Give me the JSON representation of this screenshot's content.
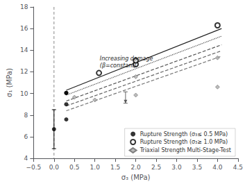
{
  "chart_data": {
    "type": "scatter",
    "xlabel": "σ₃ (MPa)",
    "ylabel": "σ₁ (MPa)",
    "xlim": [
      -0.5,
      4.5
    ],
    "ylim": [
      4.0,
      18.0
    ],
    "xticks": [
      {
        "value": -0.5,
        "label": "−0.5"
      },
      {
        "value": 0.0,
        "label": "0.0"
      },
      0.5,
      {
        "value": 1.0,
        "label": "1.0"
      },
      1.5,
      {
        "value": 2.0,
        "label": "2.0"
      },
      2.5,
      {
        "value": 3.0,
        "label": "3.0"
      },
      3.5,
      {
        "value": 4.0,
        "label": "4.0"
      },
      4.5
    ],
    "yticks": [
      4,
      6,
      8,
      10,
      12,
      14,
      16,
      18
    ],
    "grid": false,
    "legend": "lower right",
    "series": [
      {
        "type": "line",
        "line_style": "solid",
        "color": "#222222",
        "x": [
          0.3,
          4.1
        ],
        "values": [
          10.3,
          16.0
        ]
      },
      {
        "type": "line",
        "line_style": "dotted",
        "color": "#444444",
        "x": [
          0.3,
          4.1
        ],
        "values": [
          9.85,
          15.3
        ]
      },
      {
        "type": "line",
        "line_style": "dashed",
        "color": "#555555",
        "x": [
          0.3,
          4.1
        ],
        "values": [
          9.3,
          14.5
        ]
      },
      {
        "type": "line",
        "line_style": "dashed",
        "color": "#666666",
        "x": [
          0.3,
          4.1
        ],
        "values": [
          8.85,
          13.95
        ]
      },
      {
        "type": "line",
        "line_style": "dashed",
        "color": "#777777",
        "x": [
          0.3,
          4.1
        ],
        "values": [
          8.4,
          13.45
        ]
      },
      {
        "name": "Rupture Strength (σ₃≤ 0.5 MPa)",
        "type": "scatter",
        "marker": "circle",
        "color": "#000000",
        "x": [
          0.0,
          0.3,
          0.3,
          0.3,
          0.3
        ],
        "values": [
          6.7,
          9.0,
          7.6,
          10.05,
          10.05
        ],
        "yerr": [
          1.8,
          null,
          null,
          null,
          null
        ]
      },
      {
        "name": "Rupture Strength (σ₃≥ 1.0 MPa)",
        "type": "scatter",
        "marker": "open_circle",
        "color": "#000000",
        "x": [
          1.1,
          2.0,
          2.0,
          4.0
        ],
        "values": [
          11.9,
          12.7,
          13.05,
          16.3
        ]
      },
      {
        "name": "Triaxial Strength Multi-Stage-Test",
        "type": "scatter",
        "marker": "diamond",
        "color": "#aaaaaa",
        "x": [
          0.5,
          1.0,
          2.0,
          2.0,
          4.0,
          4.0
        ],
        "values": [
          9.65,
          9.4,
          11.55,
          9.85,
          10.6,
          13.3
        ]
      }
    ],
    "reference_lines": [
      {
        "x": 0.0,
        "line_style": "dashed",
        "color": "#888888"
      }
    ],
    "bracket": {
      "x": 1.75,
      "y_top": 10.15,
      "y_bottom": 9.1
    },
    "annotations": [
      {
        "text": "Increasing damage\n(β=constant)",
        "x": 1.12,
        "y": 13.55
      }
    ]
  }
}
